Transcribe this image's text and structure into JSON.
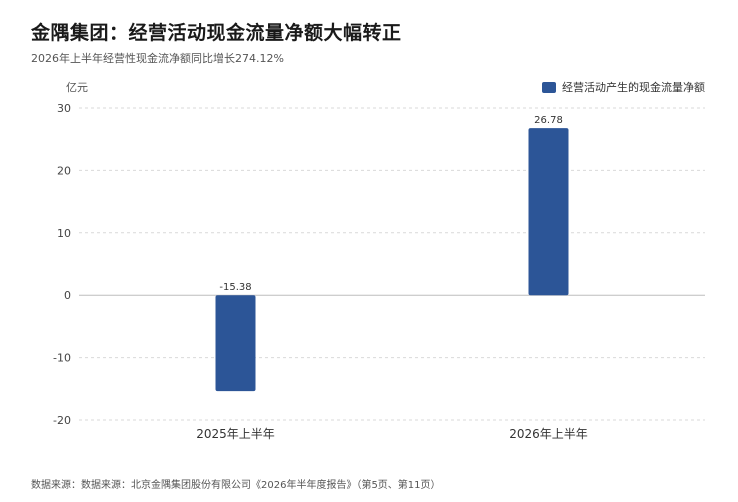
{
  "header": {
    "title": "金隅集团：经营活动现金流量净额大幅转正",
    "subtitle": "2026年上半年经营性现金流净额同比增长274.12%"
  },
  "footer": {
    "source": "数据来源：数据来源：北京金隅集团股份有限公司《2026年半年度报告》（第5页、第11页）"
  },
  "colors": {
    "bar": "#2c5597",
    "grid": "#d9d9d9",
    "zero": "#bdbdbd"
  },
  "chart_data": {
    "type": "bar",
    "title": "金隅集团：经营活动现金流量净额大幅转正",
    "subtitle": "2026年上半年经营性现金流净额同比增长274.12%",
    "unit": "亿元",
    "categories": [
      "2025年上半年",
      "2026年上半年"
    ],
    "series": [
      {
        "name": "经营活动产生的现金流量净额",
        "values": [
          -15.38,
          26.78
        ],
        "labels": [
          "-15.38",
          "26.78"
        ]
      }
    ],
    "ylim": [
      -20,
      30
    ],
    "yticks": [
      30,
      20,
      10,
      0,
      -10,
      -20
    ],
    "grid": true,
    "legend": "top-right"
  }
}
